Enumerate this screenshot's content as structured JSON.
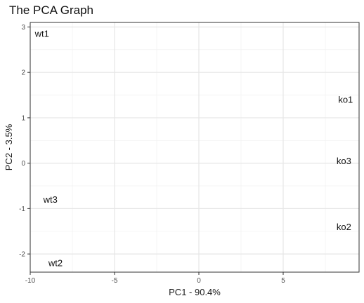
{
  "chart_data": {
    "type": "scatter",
    "title": "The PCA Graph",
    "xlabel": "PC1 - 90.4%",
    "ylabel": "PC2 - 3.5%",
    "xlim": [
      -10,
      9.5
    ],
    "ylim": [
      -2.4,
      3.1
    ],
    "xticks": [
      -10,
      -5,
      0,
      5
    ],
    "yticks": [
      -2,
      -1,
      0,
      1,
      2,
      3
    ],
    "grid": true,
    "legend": "none",
    "points": [
      {
        "label": "wt1",
        "x": -9.3,
        "y": 2.85
      },
      {
        "label": "ko1",
        "x": 8.7,
        "y": 1.4
      },
      {
        "label": "ko3",
        "x": 8.6,
        "y": 0.05
      },
      {
        "label": "wt3",
        "x": -8.8,
        "y": -0.8
      },
      {
        "label": "ko2",
        "x": 8.6,
        "y": -1.4
      },
      {
        "label": "wt2",
        "x": -8.5,
        "y": -2.2
      }
    ]
  }
}
